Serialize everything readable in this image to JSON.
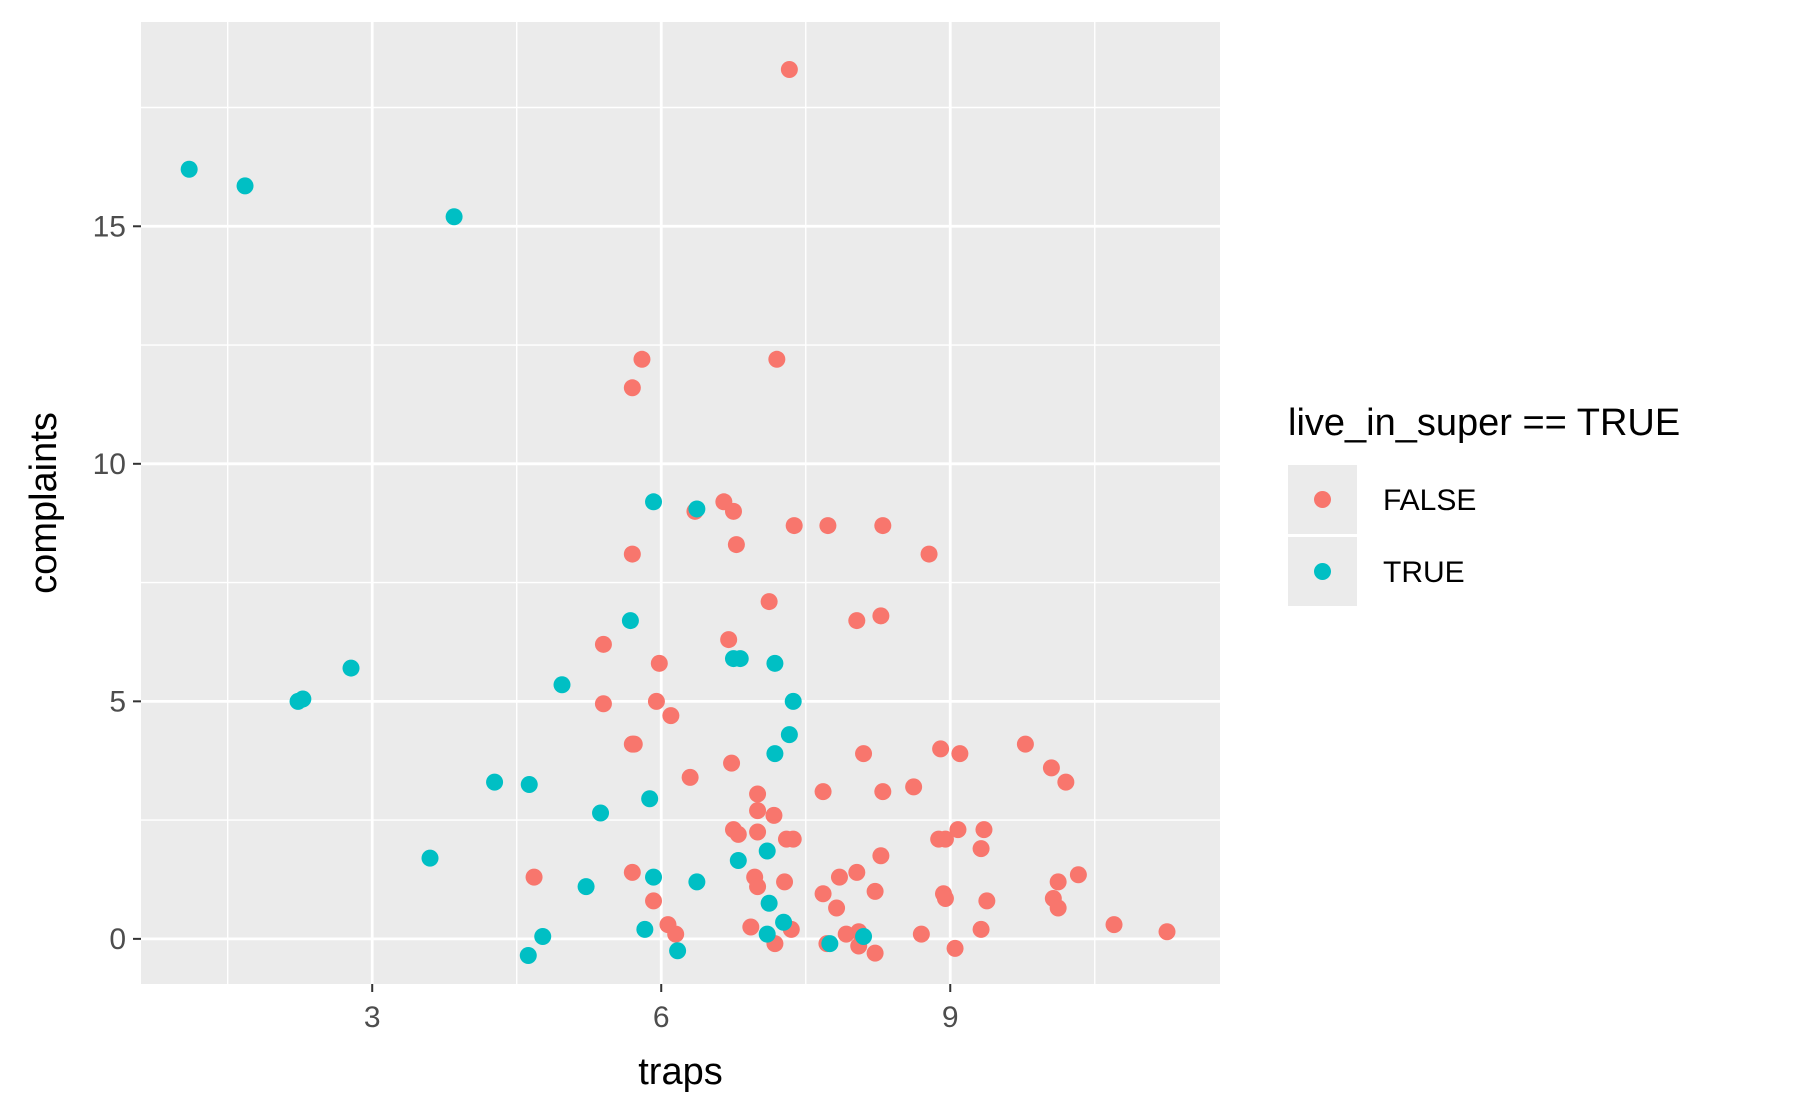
{
  "chart_data": {
    "type": "scatter",
    "xlabel": "traps",
    "ylabel": "complaints",
    "xlim": [
      0.6,
      11.8
    ],
    "ylim": [
      -0.95,
      19.3
    ],
    "x_ticks": [
      3,
      6,
      9
    ],
    "x_tick_labels": [
      "3",
      "6",
      "9"
    ],
    "y_ticks": [
      0,
      5,
      10,
      15
    ],
    "y_tick_labels": [
      "0",
      "5",
      "10",
      "15"
    ],
    "grid": true,
    "legend": {
      "title": "live_in_super == TRUE",
      "placement": "right",
      "entries": [
        {
          "label": "FALSE",
          "color": "#F8766D"
        },
        {
          "label": "TRUE",
          "color": "#00BFC4"
        }
      ]
    },
    "series": [
      {
        "name": "FALSE",
        "color": "#F8766D",
        "points": [
          [
            7.33,
            18.3
          ],
          [
            5.8,
            12.2
          ],
          [
            7.2,
            12.2
          ],
          [
            5.7,
            11.6
          ],
          [
            6.65,
            9.2
          ],
          [
            6.75,
            9.0
          ],
          [
            6.35,
            9.0
          ],
          [
            7.38,
            8.7
          ],
          [
            7.73,
            8.7
          ],
          [
            8.3,
            8.7
          ],
          [
            5.7,
            8.1
          ],
          [
            6.78,
            8.3
          ],
          [
            8.78,
            8.1
          ],
          [
            7.12,
            7.1
          ],
          [
            8.03,
            6.7
          ],
          [
            8.28,
            6.8
          ],
          [
            6.7,
            6.3
          ],
          [
            5.4,
            6.2
          ],
          [
            5.98,
            5.8
          ],
          [
            5.4,
            4.95
          ],
          [
            5.95,
            5.0
          ],
          [
            6.1,
            4.7
          ],
          [
            5.7,
            4.1
          ],
          [
            5.72,
            4.1
          ],
          [
            9.78,
            4.1
          ],
          [
            8.1,
            3.9
          ],
          [
            8.9,
            4.0
          ],
          [
            9.1,
            3.9
          ],
          [
            6.73,
            3.7
          ],
          [
            10.05,
            3.6
          ],
          [
            10.2,
            3.3
          ],
          [
            6.3,
            3.4
          ],
          [
            7.68,
            3.1
          ],
          [
            8.3,
            3.1
          ],
          [
            8.62,
            3.2
          ],
          [
            7.0,
            3.05
          ],
          [
            7.0,
            2.7
          ],
          [
            7.17,
            2.6
          ],
          [
            6.75,
            2.3
          ],
          [
            6.8,
            2.2
          ],
          [
            7.0,
            2.25
          ],
          [
            7.3,
            2.1
          ],
          [
            7.37,
            2.1
          ],
          [
            8.88,
            2.1
          ],
          [
            8.95,
            2.1
          ],
          [
            9.08,
            2.3
          ],
          [
            9.35,
            2.3
          ],
          [
            9.32,
            1.9
          ],
          [
            8.28,
            1.75
          ],
          [
            4.68,
            1.3
          ],
          [
            5.7,
            1.4
          ],
          [
            6.97,
            1.3
          ],
          [
            7.0,
            1.1
          ],
          [
            7.28,
            1.2
          ],
          [
            7.85,
            1.3
          ],
          [
            8.03,
            1.4
          ],
          [
            8.22,
            1.0
          ],
          [
            7.68,
            0.95
          ],
          [
            7.82,
            0.65
          ],
          [
            8.93,
            0.95
          ],
          [
            8.95,
            0.85
          ],
          [
            9.38,
            0.8
          ],
          [
            10.07,
            0.85
          ],
          [
            10.12,
            1.2
          ],
          [
            10.12,
            0.65
          ],
          [
            10.33,
            1.35
          ],
          [
            5.92,
            0.8
          ],
          [
            6.07,
            0.3
          ],
          [
            6.15,
            0.1
          ],
          [
            6.93,
            0.25
          ],
          [
            7.35,
            0.2
          ],
          [
            7.18,
            -0.1
          ],
          [
            7.72,
            -0.1
          ],
          [
            7.92,
            0.1
          ],
          [
            8.05,
            0.15
          ],
          [
            8.05,
            -0.15
          ],
          [
            8.22,
            -0.3
          ],
          [
            8.7,
            0.1
          ],
          [
            9.05,
            -0.2
          ],
          [
            9.32,
            0.2
          ],
          [
            10.7,
            0.3
          ],
          [
            11.25,
            0.15
          ]
        ]
      },
      {
        "name": "TRUE",
        "color": "#00BFC4",
        "points": [
          [
            1.1,
            16.2
          ],
          [
            1.68,
            15.85
          ],
          [
            3.85,
            15.2
          ],
          [
            5.92,
            9.2
          ],
          [
            6.37,
            9.05
          ],
          [
            5.68,
            6.7
          ],
          [
            2.78,
            5.7
          ],
          [
            2.23,
            5.0
          ],
          [
            2.28,
            5.05
          ],
          [
            4.97,
            5.35
          ],
          [
            6.75,
            5.9
          ],
          [
            6.82,
            5.9
          ],
          [
            7.18,
            5.8
          ],
          [
            7.37,
            5.0
          ],
          [
            7.33,
            4.3
          ],
          [
            7.18,
            3.9
          ],
          [
            4.27,
            3.3
          ],
          [
            4.63,
            3.25
          ],
          [
            5.88,
            2.95
          ],
          [
            5.37,
            2.65
          ],
          [
            3.6,
            1.7
          ],
          [
            7.1,
            1.85
          ],
          [
            6.8,
            1.65
          ],
          [
            5.92,
            1.3
          ],
          [
            6.37,
            1.2
          ],
          [
            5.22,
            1.1
          ],
          [
            7.12,
            0.75
          ],
          [
            7.27,
            0.35
          ],
          [
            5.83,
            0.2
          ],
          [
            4.77,
            0.05
          ],
          [
            4.62,
            -0.35
          ],
          [
            6.17,
            -0.25
          ],
          [
            7.1,
            0.1
          ],
          [
            7.75,
            -0.1
          ],
          [
            8.1,
            0.05
          ]
        ]
      }
    ]
  }
}
